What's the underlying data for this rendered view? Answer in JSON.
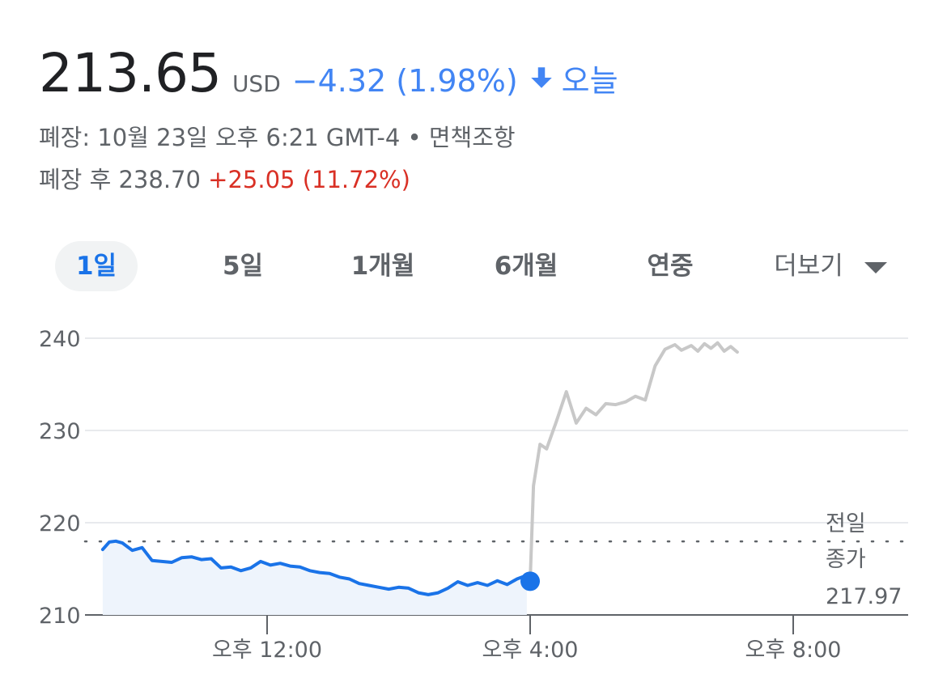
{
  "quote": {
    "price": "213.65",
    "currency": "USD",
    "change": "−4.32 (1.98%)",
    "period": "오늘",
    "close_info": "폐장: 10월 23일 오후 6:21 GMT-4 • 면책조항",
    "after_hours_label": "폐장 후 238.70",
    "after_hours_change": "+25.05 (11.72%)"
  },
  "tabs": [
    {
      "label": "1일",
      "active": true
    },
    {
      "label": "5일",
      "active": false
    },
    {
      "label": "1개월",
      "active": false
    },
    {
      "label": "6개월",
      "active": false
    },
    {
      "label": "연중",
      "active": false
    },
    {
      "label": "더보기",
      "active": false
    }
  ],
  "colors": {
    "regular": "#1a73e8",
    "after_hours": "#c8c8c8",
    "fill": "#eef4fc",
    "down": "#4285f4",
    "up": "#d93025"
  },
  "chart_data": {
    "type": "line",
    "y_ticks": [
      210,
      220,
      230,
      240
    ],
    "ylim": [
      210,
      240
    ],
    "x_tick_labels": [
      "오후 12:00",
      "오후 4:00",
      "오후 8:00"
    ],
    "x_tick_hours": [
      12,
      16,
      20
    ],
    "xlim_hours": [
      9.5,
      21.7
    ],
    "previous_close": {
      "value": 217.97,
      "label_line1": "전일",
      "label_line2": "종가",
      "label_value": "217.97"
    },
    "series": [
      {
        "segment": "regular",
        "x_hours": [
          9.5,
          9.6,
          9.7,
          9.8,
          9.95,
          10.1,
          10.25,
          10.4,
          10.55,
          10.7,
          10.85,
          11.0,
          11.15,
          11.3,
          11.45,
          11.6,
          11.75,
          11.9,
          12.05,
          12.2,
          12.35,
          12.5,
          12.65,
          12.8,
          12.95,
          13.1,
          13.25,
          13.4,
          13.55,
          13.7,
          13.85,
          14.0,
          14.15,
          14.3,
          14.45,
          14.6,
          14.75,
          14.9,
          15.05,
          15.2,
          15.35,
          15.5,
          15.65,
          15.8,
          15.95
        ],
        "y": [
          217.1,
          217.9,
          218.0,
          217.8,
          217.0,
          217.3,
          215.9,
          215.8,
          215.7,
          216.2,
          216.3,
          216.0,
          216.1,
          215.1,
          215.2,
          214.8,
          215.1,
          215.8,
          215.4,
          215.6,
          215.3,
          215.2,
          214.8,
          214.6,
          214.5,
          214.1,
          213.9,
          213.4,
          213.2,
          213.0,
          212.8,
          213.0,
          212.9,
          212.4,
          212.2,
          212.4,
          212.9,
          213.6,
          213.2,
          213.5,
          213.2,
          213.7,
          213.3,
          213.9,
          214.3
        ],
        "end_value": 213.65
      },
      {
        "segment": "after_hours",
        "x_hours": [
          16.0,
          16.05,
          16.15,
          16.25,
          16.4,
          16.55,
          16.7,
          16.85,
          17.0,
          17.15,
          17.3,
          17.45,
          17.6,
          17.75,
          17.9,
          18.05,
          18.2,
          18.3,
          18.45,
          18.55,
          18.65,
          18.75,
          18.85,
          18.95,
          19.05,
          19.15
        ],
        "y": [
          213.65,
          224.0,
          228.5,
          228.0,
          231.0,
          234.2,
          230.8,
          232.4,
          231.7,
          232.9,
          232.8,
          233.1,
          233.7,
          233.3,
          237.0,
          238.8,
          239.3,
          238.7,
          239.2,
          238.6,
          239.4,
          238.9,
          239.5,
          238.6,
          239.1,
          238.5
        ]
      }
    ]
  }
}
